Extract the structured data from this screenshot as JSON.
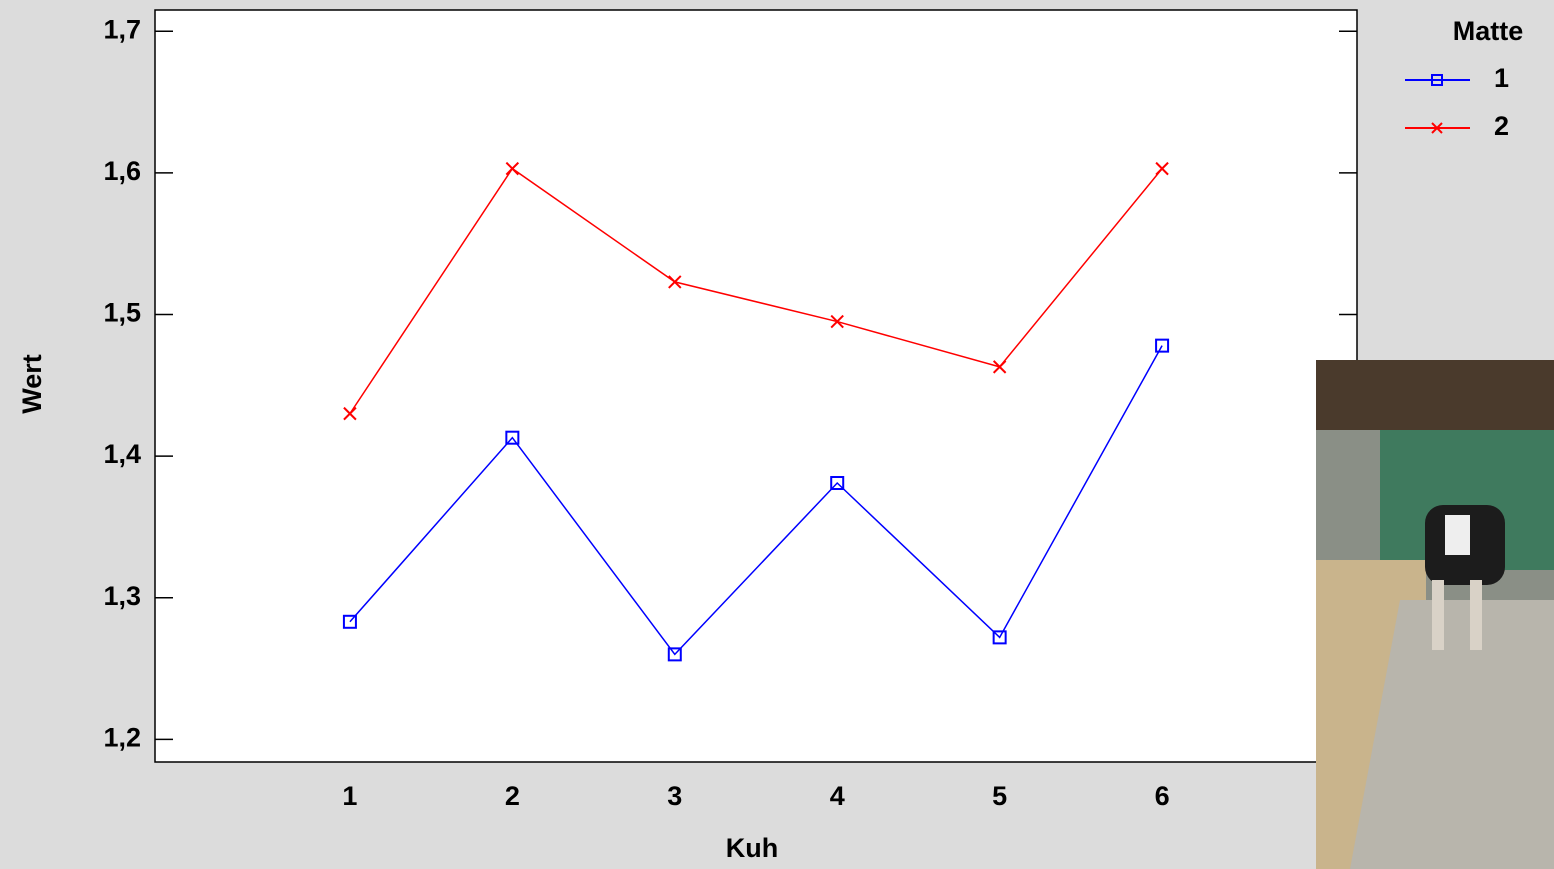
{
  "chart_data": {
    "type": "line",
    "x_label": "Kuh",
    "y_label": "Wert",
    "x": [
      1,
      2,
      3,
      4,
      5,
      6
    ],
    "xlim": [
      -0.2,
      7.2
    ],
    "xticks": [
      1,
      2,
      3,
      4,
      5,
      6
    ],
    "ylim": [
      1.184,
      1.715
    ],
    "yticks": [
      {
        "value": 1.2,
        "label": "1,2"
      },
      {
        "value": 1.3,
        "label": "1,3"
      },
      {
        "value": 1.4,
        "label": "1,4"
      },
      {
        "value": 1.5,
        "label": "1,5"
      },
      {
        "value": 1.6,
        "label": "1,6"
      },
      {
        "value": 1.7,
        "label": "1,7"
      }
    ],
    "legend_title": "Matte",
    "series": [
      {
        "name": "1",
        "color": "#0000ff",
        "marker": "square",
        "values": [
          1.283,
          1.413,
          1.26,
          1.381,
          1.272,
          1.478
        ]
      },
      {
        "name": "2",
        "color": "#ff0000",
        "marker": "x",
        "values": [
          1.43,
          1.603,
          1.523,
          1.495,
          1.463,
          1.603
        ]
      }
    ]
  }
}
